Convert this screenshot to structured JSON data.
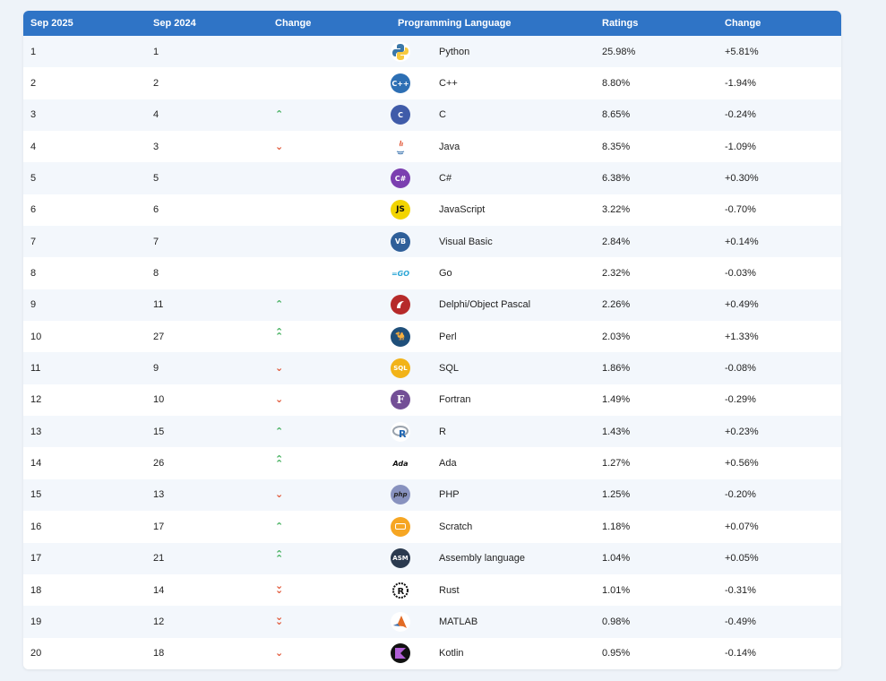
{
  "table": {
    "headers": {
      "sep2025": "Sep 2025",
      "sep2024": "Sep 2024",
      "change": "Change",
      "language": "Programming Language",
      "ratings": "Ratings",
      "change_pct": "Change"
    },
    "rows": [
      {
        "rank": "1",
        "prev": "1",
        "trend": "none",
        "language": "Python",
        "icon": "python-icon",
        "rating": "25.98%",
        "delta": "+5.81%"
      },
      {
        "rank": "2",
        "prev": "2",
        "trend": "none",
        "language": "C++",
        "icon": "cpp-icon",
        "rating": "8.80%",
        "delta": "-1.94%"
      },
      {
        "rank": "3",
        "prev": "4",
        "trend": "up",
        "language": "C",
        "icon": "c-icon",
        "rating": "8.65%",
        "delta": "-0.24%"
      },
      {
        "rank": "4",
        "prev": "3",
        "trend": "down",
        "language": "Java",
        "icon": "java-icon",
        "rating": "8.35%",
        "delta": "-1.09%"
      },
      {
        "rank": "5",
        "prev": "5",
        "trend": "none",
        "language": "C#",
        "icon": "csharp-icon",
        "rating": "6.38%",
        "delta": "+0.30%"
      },
      {
        "rank": "6",
        "prev": "6",
        "trend": "none",
        "language": "JavaScript",
        "icon": "javascript-icon",
        "rating": "3.22%",
        "delta": "-0.70%"
      },
      {
        "rank": "7",
        "prev": "7",
        "trend": "none",
        "language": "Visual Basic",
        "icon": "visual-basic-icon",
        "rating": "2.84%",
        "delta": "+0.14%"
      },
      {
        "rank": "8",
        "prev": "8",
        "trend": "none",
        "language": "Go",
        "icon": "go-icon",
        "rating": "2.32%",
        "delta": "-0.03%"
      },
      {
        "rank": "9",
        "prev": "11",
        "trend": "up",
        "language": "Delphi/Object Pascal",
        "icon": "delphi-icon",
        "rating": "2.26%",
        "delta": "+0.49%"
      },
      {
        "rank": "10",
        "prev": "27",
        "trend": "upup",
        "language": "Perl",
        "icon": "perl-icon",
        "rating": "2.03%",
        "delta": "+1.33%"
      },
      {
        "rank": "11",
        "prev": "9",
        "trend": "down",
        "language": "SQL",
        "icon": "sql-icon",
        "rating": "1.86%",
        "delta": "-0.08%"
      },
      {
        "rank": "12",
        "prev": "10",
        "trend": "down",
        "language": "Fortran",
        "icon": "fortran-icon",
        "rating": "1.49%",
        "delta": "-0.29%"
      },
      {
        "rank": "13",
        "prev": "15",
        "trend": "up",
        "language": "R",
        "icon": "r-icon",
        "rating": "1.43%",
        "delta": "+0.23%"
      },
      {
        "rank": "14",
        "prev": "26",
        "trend": "upup",
        "language": "Ada",
        "icon": "ada-icon",
        "rating": "1.27%",
        "delta": "+0.56%"
      },
      {
        "rank": "15",
        "prev": "13",
        "trend": "down",
        "language": "PHP",
        "icon": "php-icon",
        "rating": "1.25%",
        "delta": "-0.20%"
      },
      {
        "rank": "16",
        "prev": "17",
        "trend": "up",
        "language": "Scratch",
        "icon": "scratch-icon",
        "rating": "1.18%",
        "delta": "+0.07%"
      },
      {
        "rank": "17",
        "prev": "21",
        "trend": "upup",
        "language": "Assembly language",
        "icon": "assembly-icon",
        "rating": "1.04%",
        "delta": "+0.05%"
      },
      {
        "rank": "18",
        "prev": "14",
        "trend": "downdown",
        "language": "Rust",
        "icon": "rust-icon",
        "rating": "1.01%",
        "delta": "-0.31%"
      },
      {
        "rank": "19",
        "prev": "12",
        "trend": "downdown",
        "language": "MATLAB",
        "icon": "matlab-icon",
        "rating": "0.98%",
        "delta": "-0.49%"
      },
      {
        "rank": "20",
        "prev": "18",
        "trend": "down",
        "language": "Kotlin",
        "icon": "kotlin-icon",
        "rating": "0.95%",
        "delta": "-0.14%"
      }
    ]
  },
  "colors": {
    "header_bg": "#2f74c6",
    "trend_up": "#3fae5a",
    "trend_down": "#e0502f"
  }
}
